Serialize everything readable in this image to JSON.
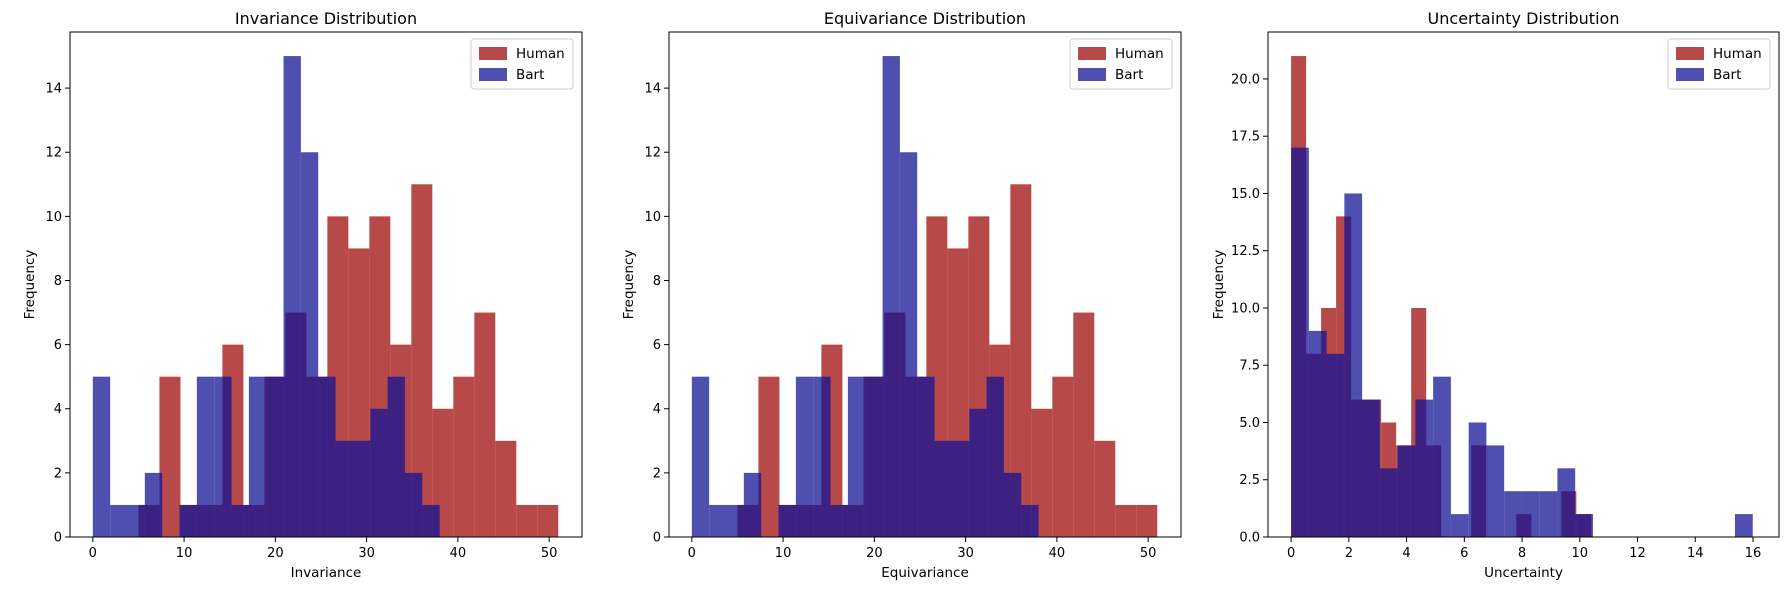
{
  "colors": {
    "human": "#a51c1c",
    "bart": "#141496",
    "axis": "#000000",
    "background": "#ffffff"
  },
  "chart_data": [
    {
      "type": "histogram",
      "title": "Invariance Distribution",
      "xlabel": "Invariance",
      "ylabel": "Frequency",
      "xlim": [
        -2.5,
        53.6
      ],
      "ylim": [
        0,
        15.75
      ],
      "xticks": [
        0,
        10,
        20,
        30,
        40,
        50
      ],
      "yticks": [
        0,
        2,
        4,
        6,
        8,
        10,
        12,
        14
      ],
      "ytick_labels": [
        "0",
        "2",
        "4",
        "6",
        "8",
        "10",
        "12",
        "14"
      ],
      "grid": false,
      "legend": {
        "position": "top-right",
        "entries": [
          "Human",
          "Bart"
        ]
      },
      "series": [
        {
          "name": "Human",
          "color": "human",
          "opacity": 0.8,
          "bin_edges": [
            5.0,
            7.3,
            9.6,
            11.9,
            14.2,
            16.5,
            18.8,
            21.1,
            23.4,
            25.7,
            28.0,
            30.3,
            32.6,
            34.9,
            37.2,
            39.5,
            41.8,
            44.1,
            46.4,
            48.7,
            51.0
          ],
          "counts": [
            1,
            5,
            1,
            1,
            6,
            1,
            5,
            7,
            5,
            10,
            9,
            10,
            6,
            11,
            4,
            5,
            7,
            3,
            1,
            1
          ]
        },
        {
          "name": "Bart",
          "color": "bart",
          "opacity": 0.75,
          "bin_edges": [
            0.0,
            1.9,
            3.8,
            5.7,
            7.6,
            9.5,
            11.4,
            13.3,
            15.2,
            17.1,
            19.0,
            20.9,
            22.8,
            24.7,
            26.6,
            28.5,
            30.4,
            32.3,
            34.2,
            36.1,
            38.0
          ],
          "counts": [
            5,
            1,
            1,
            2,
            0,
            1,
            5,
            5,
            1,
            5,
            5,
            15,
            12,
            5,
            3,
            3,
            4,
            5,
            2,
            1
          ]
        }
      ]
    },
    {
      "type": "histogram",
      "title": "Equivariance Distribution",
      "xlabel": "Equivariance",
      "ylabel": "Frequency",
      "xlim": [
        -2.5,
        53.6
      ],
      "ylim": [
        0,
        15.75
      ],
      "xticks": [
        0,
        10,
        20,
        30,
        40,
        50
      ],
      "yticks": [
        0,
        2,
        4,
        6,
        8,
        10,
        12,
        14
      ],
      "ytick_labels": [
        "0",
        "2",
        "4",
        "6",
        "8",
        "10",
        "12",
        "14"
      ],
      "grid": false,
      "legend": {
        "position": "top-right",
        "entries": [
          "Human",
          "Bart"
        ]
      },
      "series": [
        {
          "name": "Human",
          "color": "human",
          "opacity": 0.8,
          "bin_edges": [
            5.0,
            7.3,
            9.6,
            11.9,
            14.2,
            16.5,
            18.8,
            21.1,
            23.4,
            25.7,
            28.0,
            30.3,
            32.6,
            34.9,
            37.2,
            39.5,
            41.8,
            44.1,
            46.4,
            48.7,
            51.0
          ],
          "counts": [
            1,
            5,
            1,
            1,
            6,
            1,
            5,
            7,
            5,
            10,
            9,
            10,
            6,
            11,
            4,
            5,
            7,
            3,
            1,
            1
          ]
        },
        {
          "name": "Bart",
          "color": "bart",
          "opacity": 0.75,
          "bin_edges": [
            0.0,
            1.9,
            3.8,
            5.7,
            7.6,
            9.5,
            11.4,
            13.3,
            15.2,
            17.1,
            19.0,
            20.9,
            22.8,
            24.7,
            26.6,
            28.5,
            30.4,
            32.3,
            34.2,
            36.1,
            38.0
          ],
          "counts": [
            5,
            1,
            1,
            2,
            0,
            1,
            5,
            5,
            1,
            5,
            5,
            15,
            12,
            5,
            3,
            3,
            4,
            5,
            2,
            1
          ]
        }
      ]
    },
    {
      "type": "histogram",
      "title": "Uncertainty Distribution",
      "xlabel": "Uncertainty",
      "ylabel": "Frequency",
      "xlim": [
        -0.8,
        16.9
      ],
      "ylim": [
        0,
        22.05
      ],
      "xticks": [
        0,
        2,
        4,
        6,
        8,
        10,
        12,
        14,
        16
      ],
      "yticks": [
        0,
        2.5,
        5,
        7.5,
        10,
        12.5,
        15,
        17.5,
        20
      ],
      "ytick_labels": [
        "0.0",
        "2.5",
        "5.0",
        "7.5",
        "10.0",
        "12.5",
        "15.0",
        "17.5",
        "20.0"
      ],
      "grid": false,
      "legend": {
        "position": "top-right",
        "entries": [
          "Human",
          "Bart"
        ]
      },
      "series": [
        {
          "name": "Human",
          "color": "human",
          "opacity": 0.8,
          "bin_edges": [
            0.0,
            0.52,
            1.04,
            1.56,
            2.08,
            2.6,
            3.12,
            3.64,
            4.16,
            4.68,
            5.2,
            5.72,
            6.24,
            6.76,
            7.28,
            7.8,
            8.32,
            8.84,
            9.36,
            9.88,
            10.4
          ],
          "counts": [
            21,
            8,
            10,
            14,
            6,
            6,
            5,
            4,
            10,
            4,
            0,
            0,
            4,
            0,
            0,
            1,
            0,
            0,
            2,
            1
          ]
        },
        {
          "name": "Bart",
          "color": "bart",
          "opacity": 0.75,
          "bin_edges": [
            0.0,
            0.615,
            1.23,
            1.845,
            2.46,
            3.075,
            3.69,
            4.305,
            4.92,
            5.535,
            6.15,
            6.765,
            7.38,
            7.995,
            8.61,
            9.225,
            9.84,
            10.455,
            11.07,
            11.685,
            12.3,
            12.915,
            13.53,
            14.145,
            14.76,
            15.375,
            15.99
          ],
          "counts": [
            17,
            9,
            8,
            15,
            6,
            3,
            4,
            6,
            7,
            1,
            5,
            4,
            2,
            2,
            2,
            3,
            1,
            0,
            0,
            0,
            0,
            0,
            0,
            0,
            0,
            1
          ]
        }
      ]
    }
  ]
}
